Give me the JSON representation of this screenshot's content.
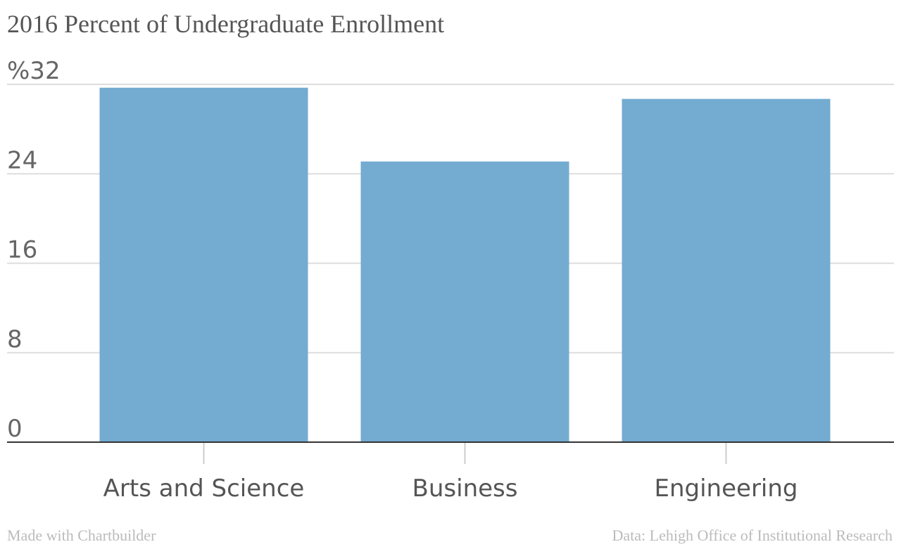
{
  "chart_data": {
    "type": "bar",
    "title": "2016 Percent of Undergraduate Enrollment",
    "categories": [
      "Arts and Science",
      "Business",
      "Engineering"
    ],
    "values": [
      31.7,
      25.1,
      30.7
    ],
    "ylim": [
      0,
      32
    ],
    "yticks": [
      0,
      8,
      16,
      24,
      32
    ],
    "ytick_labels": [
      "0",
      "8",
      "16",
      "24",
      "%32"
    ],
    "xlabel": "",
    "ylabel": "",
    "grid": true,
    "legend": "none",
    "bar_color": "#74abd1"
  },
  "footer": {
    "credit": "Made with Chartbuilder",
    "source": "Data: Lehigh Office of Institutional Research"
  },
  "colors": {
    "gridline": "#dddddd",
    "baseline": "#333333",
    "tick": "#cccccc"
  }
}
